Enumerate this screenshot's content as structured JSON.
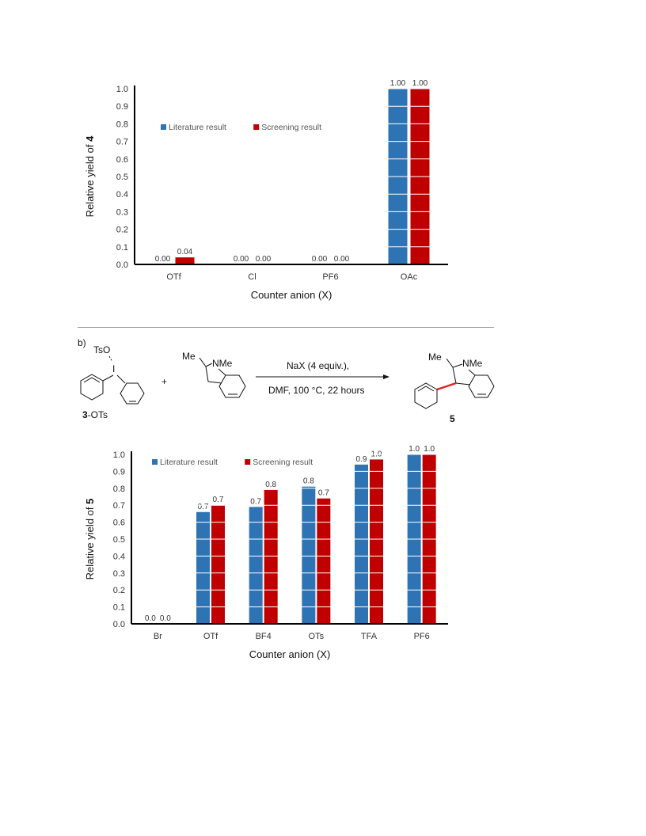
{
  "chart_data": [
    {
      "type": "bar",
      "categories": [
        "OTf",
        "Cl",
        "PF6",
        "OAc"
      ],
      "series": [
        {
          "name": "Literature result",
          "values": [
            0.0,
            0.0,
            0.0,
            1.0
          ],
          "labels": [
            "0.00",
            "0.00",
            "0.00",
            "1.00"
          ],
          "color": "#2e74b5"
        },
        {
          "name": "Screening result",
          "values": [
            0.04,
            0.0,
            0.0,
            1.0
          ],
          "labels": [
            "0.04",
            "0.00",
            "0.00",
            "1.00"
          ],
          "color": "#c00000"
        }
      ],
      "ylabel_prefix": "Relative yield of ",
      "ylabel_bold": "4",
      "xlabel": "Counter anion (X)",
      "ylim": [
        0,
        1.0
      ],
      "yticks": [
        "0.0",
        "0.1",
        "0.2",
        "0.3",
        "0.4",
        "0.5",
        "0.6",
        "0.7",
        "0.8",
        "0.9",
        "1.0"
      ],
      "grid": "horizontal white lines over bars",
      "legend_position": "upper-left"
    },
    {
      "type": "bar",
      "categories": [
        "Br",
        "OTf",
        "BF4",
        "OTs",
        "TFA",
        "PF6"
      ],
      "series": [
        {
          "name": "Literature result",
          "values": [
            0.0,
            0.66,
            0.69,
            0.81,
            0.94,
            1.0
          ],
          "labels": [
            "0.0",
            "0.7",
            "0.7",
            "0.8",
            "0.9",
            "1.0"
          ],
          "color": "#2e74b5"
        },
        {
          "name": "Screening result",
          "values": [
            0.0,
            0.7,
            0.79,
            0.74,
            0.97,
            1.0
          ],
          "labels": [
            "0.0",
            "0.7",
            "0.8",
            "0.7",
            "1.0",
            "1.0"
          ],
          "color": "#c00000"
        }
      ],
      "ylabel_prefix": "Relative yield of ",
      "ylabel_bold": "5",
      "xlabel": "Counter anion (X)",
      "ylim": [
        0,
        1.0
      ],
      "yticks": [
        "0.0",
        "0.1",
        "0.2",
        "0.3",
        "0.4",
        "0.5",
        "0.6",
        "0.7",
        "0.8",
        "0.9",
        "1.0"
      ],
      "grid": "horizontal white lines over bars",
      "legend_position": "top-left"
    }
  ],
  "scheme": {
    "panel_label": "b)",
    "reagent_left_group": "TsO",
    "reagent_left_atom": "I",
    "reagent_left_label_bold": "3",
    "reagent_left_label_rest": "-OTs",
    "plus": "+",
    "indole_methyl": "Me",
    "indole_nitrogen": "NMe",
    "conditions_top": "NaX (4 equiv.),",
    "conditions_bottom": "DMF, 100 °C, 22 hours",
    "product_methyl": "Me",
    "product_nitrogen": "NMe",
    "product_label": "5",
    "colors": {
      "new_bond": "#e0241f"
    }
  }
}
